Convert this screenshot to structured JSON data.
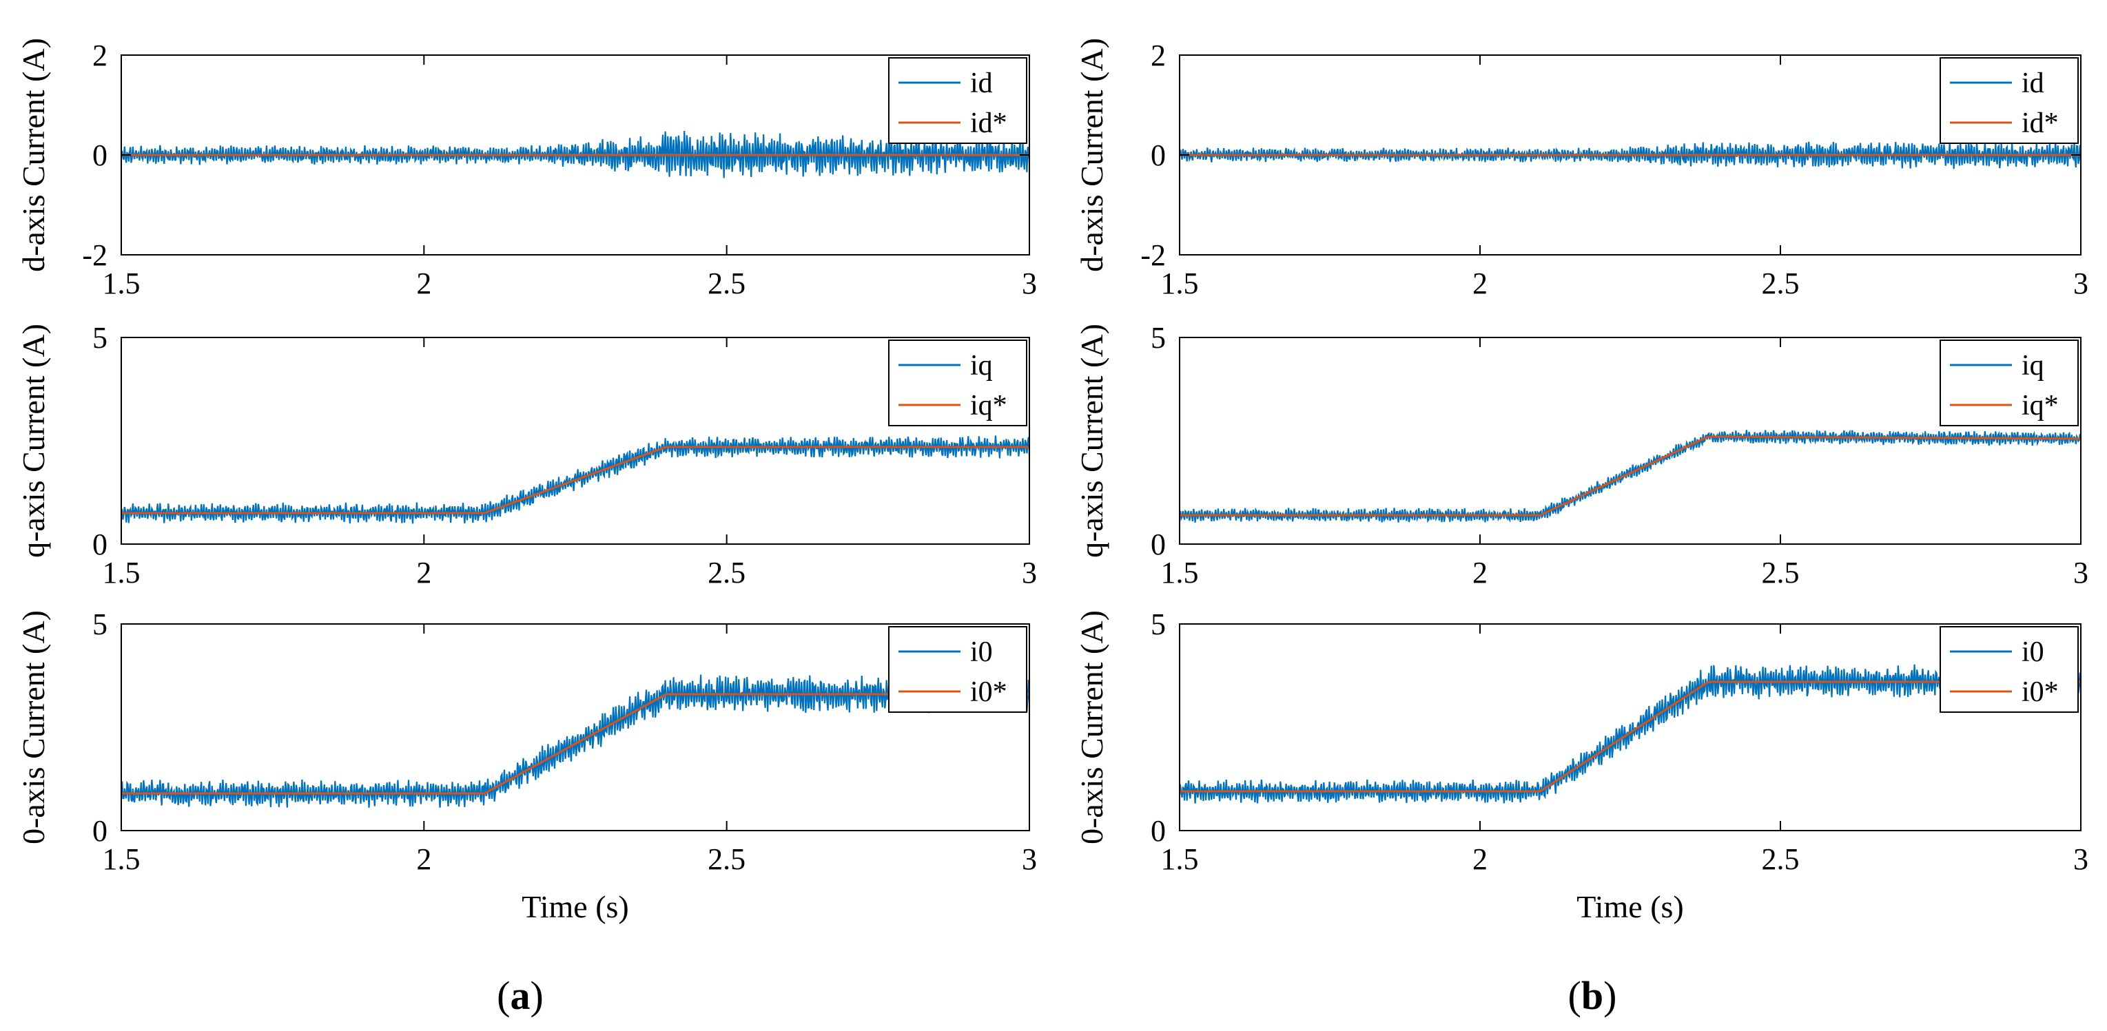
{
  "colors": {
    "measured": "#0072BD",
    "reference": "#D95319"
  },
  "chart_data": [
    {
      "panel": "a",
      "type": "line",
      "axis": "d",
      "ylabel": "d-axis Current (A)",
      "xlabel": "",
      "xlim": [
        1.5,
        3
      ],
      "ylim": [
        -2,
        2
      ],
      "xticks": [
        "1.5",
        "2",
        "2.5",
        "3"
      ],
      "yticks": [
        "-2",
        "0",
        "2"
      ],
      "legend": [
        "id",
        "id*"
      ],
      "legend_position": "top-right",
      "series": [
        {
          "name": "id",
          "role": "measured",
          "base": [
            [
              1.5,
              0
            ],
            [
              3,
              0
            ]
          ],
          "ripple": [
            [
              1.5,
              0.2
            ],
            [
              2.2,
              0.2
            ],
            [
              2.4,
              0.5
            ],
            [
              3,
              0.4
            ]
          ]
        },
        {
          "name": "id*",
          "role": "reference",
          "base": [
            [
              1.5,
              0
            ],
            [
              3,
              0
            ]
          ],
          "ripple": [
            [
              1.5,
              0
            ],
            [
              3,
              0
            ]
          ]
        }
      ]
    },
    {
      "panel": "a",
      "type": "line",
      "axis": "q",
      "ylabel": "q-axis Current (A)",
      "xlabel": "",
      "xlim": [
        1.5,
        3
      ],
      "ylim": [
        0,
        5
      ],
      "xticks": [
        "1.5",
        "2",
        "2.5",
        "3"
      ],
      "yticks": [
        "0",
        "5"
      ],
      "legend": [
        "iq",
        "iq*"
      ],
      "legend_position": "top-right",
      "series": [
        {
          "name": "iq",
          "role": "measured",
          "base": [
            [
              1.5,
              0.75
            ],
            [
              2.1,
              0.75
            ],
            [
              2.4,
              2.35
            ],
            [
              3,
              2.35
            ]
          ],
          "ripple": [
            [
              1.5,
              0.25
            ],
            [
              3,
              0.28
            ]
          ]
        },
        {
          "name": "iq*",
          "role": "reference",
          "base": [
            [
              1.5,
              0.75
            ],
            [
              2.1,
              0.75
            ],
            [
              2.4,
              2.35
            ],
            [
              3,
              2.35
            ]
          ],
          "ripple": [
            [
              1.5,
              0
            ],
            [
              3,
              0
            ]
          ]
        }
      ]
    },
    {
      "panel": "a",
      "type": "line",
      "axis": "0",
      "ylabel": "0-axis Current (A)",
      "xlabel": "Time (s)",
      "xlim": [
        1.5,
        3
      ],
      "ylim": [
        0,
        5
      ],
      "xticks": [
        "1.5",
        "2",
        "2.5",
        "3"
      ],
      "yticks": [
        "0",
        "5"
      ],
      "legend": [
        "i0",
        "i0*"
      ],
      "legend_position": "top-right",
      "series": [
        {
          "name": "i0",
          "role": "measured",
          "base": [
            [
              1.5,
              0.9
            ],
            [
              2.1,
              0.9
            ],
            [
              2.4,
              3.3
            ],
            [
              3,
              3.3
            ]
          ],
          "ripple": [
            [
              1.5,
              0.35
            ],
            [
              2.1,
              0.35
            ],
            [
              2.4,
              0.5
            ],
            [
              3,
              0.45
            ]
          ]
        },
        {
          "name": "i0*",
          "role": "reference",
          "base": [
            [
              1.5,
              0.9
            ],
            [
              2.1,
              0.9
            ],
            [
              2.4,
              3.3
            ],
            [
              3,
              3.3
            ]
          ],
          "ripple": [
            [
              1.5,
              0
            ],
            [
              3,
              0
            ]
          ]
        }
      ]
    },
    {
      "panel": "b",
      "type": "line",
      "axis": "d",
      "ylabel": "d-axis Current (A)",
      "xlabel": "",
      "xlim": [
        1.5,
        3
      ],
      "ylim": [
        -2,
        2
      ],
      "xticks": [
        "1.5",
        "2",
        "2.5",
        "3"
      ],
      "yticks": [
        "-2",
        "0",
        "2"
      ],
      "legend": [
        "id",
        "id*"
      ],
      "legend_position": "top-right",
      "series": [
        {
          "name": "id",
          "role": "measured",
          "base": [
            [
              1.5,
              0
            ],
            [
              3,
              0
            ]
          ],
          "ripple": [
            [
              1.5,
              0.15
            ],
            [
              2.2,
              0.15
            ],
            [
              2.4,
              0.28
            ],
            [
              3,
              0.28
            ]
          ]
        },
        {
          "name": "id*",
          "role": "reference",
          "base": [
            [
              1.5,
              0
            ],
            [
              3,
              0
            ]
          ],
          "ripple": [
            [
              1.5,
              0
            ],
            [
              3,
              0
            ]
          ]
        }
      ]
    },
    {
      "panel": "b",
      "type": "line",
      "axis": "q",
      "ylabel": "q-axis Current (A)",
      "xlabel": "",
      "xlim": [
        1.5,
        3
      ],
      "ylim": [
        0,
        5
      ],
      "xticks": [
        "1.5",
        "2",
        "2.5",
        "3"
      ],
      "yticks": [
        "0",
        "5"
      ],
      "legend": [
        "iq",
        "iq*"
      ],
      "legend_position": "top-right",
      "series": [
        {
          "name": "iq",
          "role": "measured",
          "base": [
            [
              1.5,
              0.7
            ],
            [
              2.1,
              0.7
            ],
            [
              2.38,
              2.6
            ],
            [
              3,
              2.55
            ]
          ],
          "ripple": [
            [
              1.5,
              0.18
            ],
            [
              3,
              0.18
            ]
          ]
        },
        {
          "name": "iq*",
          "role": "reference",
          "base": [
            [
              1.5,
              0.7
            ],
            [
              2.1,
              0.7
            ],
            [
              2.38,
              2.6
            ],
            [
              3,
              2.55
            ]
          ],
          "ripple": [
            [
              1.5,
              0
            ],
            [
              3,
              0
            ]
          ]
        }
      ]
    },
    {
      "panel": "b",
      "type": "line",
      "axis": "0",
      "ylabel": "0-axis Current (A)",
      "xlabel": "Time (s)",
      "xlim": [
        1.5,
        3
      ],
      "ylim": [
        0,
        5
      ],
      "xticks": [
        "1.5",
        "2",
        "2.5",
        "3"
      ],
      "yticks": [
        "0",
        "5"
      ],
      "legend": [
        "i0",
        "i0*"
      ],
      "legend_position": "top-right",
      "series": [
        {
          "name": "i0",
          "role": "measured",
          "base": [
            [
              1.5,
              0.95
            ],
            [
              2.1,
              0.95
            ],
            [
              2.38,
              3.6
            ],
            [
              3,
              3.6
            ]
          ],
          "ripple": [
            [
              1.5,
              0.3
            ],
            [
              2.1,
              0.3
            ],
            [
              2.38,
              0.45
            ],
            [
              3,
              0.4
            ]
          ]
        },
        {
          "name": "i0*",
          "role": "reference",
          "base": [
            [
              1.5,
              0.95
            ],
            [
              2.1,
              0.95
            ],
            [
              2.38,
              3.6
            ],
            [
              3,
              3.6
            ]
          ],
          "ripple": [
            [
              1.5,
              0
            ],
            [
              3,
              0
            ]
          ]
        }
      ]
    }
  ],
  "panel_labels": [
    {
      "open": "(",
      "letter": "a",
      "close": ")"
    },
    {
      "open": "(",
      "letter": "b",
      "close": ")"
    }
  ]
}
